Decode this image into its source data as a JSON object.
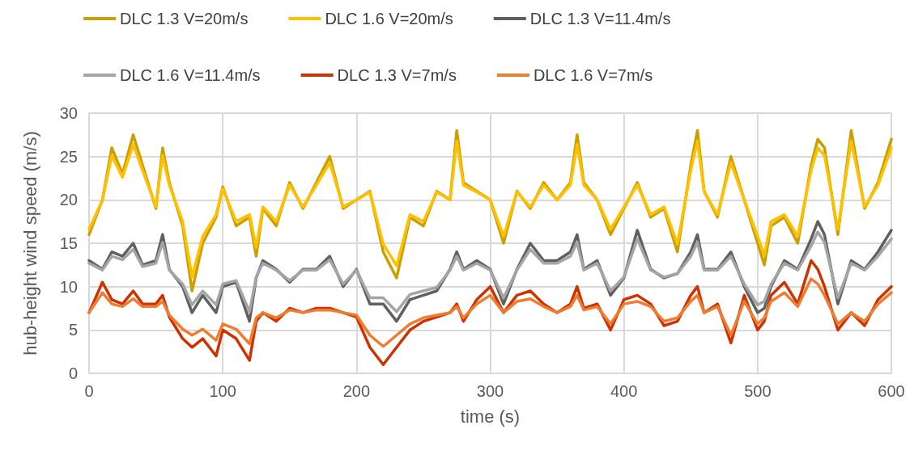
{
  "chart_data": {
    "type": "line",
    "xlabel": "time (s)",
    "ylabel": "hub-height wind speed (m/s)",
    "x": [
      0,
      10,
      17,
      25,
      33,
      40,
      50,
      55,
      60,
      70,
      77,
      85,
      95,
      100,
      110,
      120,
      125,
      130,
      140,
      150,
      160,
      170,
      180,
      190,
      200,
      210,
      220,
      230,
      240,
      250,
      260,
      270,
      275,
      280,
      290,
      300,
      310,
      320,
      330,
      340,
      350,
      360,
      365,
      370,
      380,
      390,
      400,
      410,
      420,
      430,
      440,
      450,
      455,
      460,
      470,
      480,
      490,
      500,
      505,
      510,
      520,
      530,
      540,
      545,
      550,
      560,
      570,
      580,
      590,
      600
    ],
    "series": [
      {
        "name": "DLC 1.3 V=20m/s",
        "color": "#c9a000",
        "values": [
          16,
          20,
          26,
          23,
          27.5,
          24,
          19,
          26,
          22,
          17,
          9.5,
          15,
          18,
          21.5,
          17,
          18,
          13.5,
          19,
          17,
          22,
          19,
          22,
          25,
          19,
          20,
          21,
          14,
          11,
          18,
          17,
          21,
          20,
          28,
          22,
          21,
          20,
          15,
          21,
          19,
          22,
          20,
          22,
          27.5,
          22,
          20,
          16,
          19,
          22,
          18,
          19,
          14,
          24,
          28,
          21,
          18,
          25,
          20,
          15,
          12.5,
          17,
          18,
          15,
          24,
          27,
          26,
          16,
          28,
          19,
          22,
          27
        ]
      },
      {
        "name": "DLC 1.6 V=20m/s",
        "color": "#ffc000",
        "values": [
          16.6,
          20,
          25.1,
          22.6,
          26.4,
          23.4,
          19.2,
          25.1,
          21.7,
          17.5,
          11.1,
          15.8,
          18.3,
          21.3,
          17.5,
          18.3,
          14.5,
          19.2,
          17.5,
          21.7,
          19.2,
          21.7,
          24.3,
          19.2,
          20,
          20.9,
          14.9,
          12.4,
          18.3,
          17.5,
          20.9,
          20,
          26.8,
          21.7,
          20.9,
          20,
          15.8,
          20.9,
          19.2,
          21.7,
          20,
          21.7,
          26.4,
          21.7,
          20,
          16.6,
          19.2,
          21.7,
          18.3,
          19.2,
          14.9,
          23.4,
          26.8,
          20.9,
          18.3,
          24.3,
          20,
          15.8,
          13.6,
          17.5,
          18.3,
          15.8,
          23.4,
          26,
          25.1,
          16.6,
          26.8,
          19.2,
          21.7,
          26
        ]
      },
      {
        "name": "DLC 1.3 V=11.4m/s",
        "color": "#606060",
        "values": [
          13,
          12,
          14,
          13.5,
          15,
          12.5,
          13,
          16,
          12,
          10,
          7,
          9,
          7,
          10,
          10.5,
          6,
          11,
          13,
          12,
          10.5,
          12,
          12,
          13.5,
          10,
          12,
          8,
          8,
          6,
          8.5,
          9,
          9.5,
          12,
          14,
          12,
          13,
          12,
          8,
          12,
          15,
          13,
          13,
          14,
          16,
          12,
          13,
          9,
          11,
          16.5,
          12,
          11,
          11.5,
          14,
          16,
          12,
          12,
          14,
          10,
          7,
          7.5,
          10,
          13,
          12,
          15.5,
          17.5,
          16,
          8,
          13,
          12,
          14,
          16.5
        ]
      },
      {
        "name": "DLC 1.6 V=11.4m/s",
        "color": "#a5a5a5",
        "values": [
          12.7,
          11.9,
          13.5,
          13.1,
          14.3,
          12.3,
          12.7,
          15.1,
          11.9,
          10.3,
          7.9,
          9.5,
          7.9,
          10.3,
          10.7,
          7.1,
          11.1,
          12.7,
          11.9,
          10.7,
          11.9,
          11.9,
          13.1,
          10.3,
          11.9,
          8.7,
          8.7,
          7.1,
          9.1,
          9.5,
          9.9,
          11.9,
          13.5,
          11.9,
          12.7,
          11.9,
          8.7,
          11.9,
          14.3,
          12.7,
          12.7,
          13.5,
          15.1,
          11.9,
          12.7,
          9.5,
          11.1,
          15.5,
          11.9,
          11.1,
          11.5,
          13.5,
          15.1,
          11.9,
          11.9,
          13.5,
          10.3,
          7.9,
          8.3,
          10.3,
          12.7,
          11.9,
          14.7,
          16.3,
          15.1,
          8.7,
          12.7,
          11.9,
          13.5,
          15.5
        ]
      },
      {
        "name": "DLC 1.3 V=7m/s",
        "color": "#cc3300",
        "values": [
          7,
          10.5,
          8.5,
          8,
          9.5,
          8,
          8,
          9,
          6.5,
          4,
          3,
          4,
          2,
          5,
          4,
          1.5,
          6,
          7,
          6,
          7.5,
          7,
          7.5,
          7.5,
          7,
          6.5,
          3,
          1,
          3,
          5,
          6,
          6.5,
          7,
          8,
          6,
          8.5,
          10,
          7,
          9,
          9.5,
          8,
          7,
          8,
          10,
          7.5,
          8,
          5,
          8.5,
          9,
          8,
          5.5,
          6,
          9,
          10,
          7,
          8,
          3.5,
          9,
          5,
          6,
          9,
          10.5,
          8,
          13,
          12,
          10,
          5,
          7,
          5.5,
          8.5,
          10
        ]
      },
      {
        "name": "DLC 1.6 V=7m/s",
        "color": "#ed7d31",
        "values": [
          7,
          9.3,
          8,
          7.7,
          8.6,
          7.7,
          7.7,
          8.3,
          6.7,
          5.1,
          4.4,
          5.1,
          3.8,
          5.7,
          5.1,
          3.4,
          6.4,
          7,
          6.4,
          7.3,
          7,
          7.3,
          7.3,
          7,
          6.7,
          4.4,
          3.1,
          4.4,
          5.7,
          6.4,
          6.7,
          7,
          7.7,
          6.4,
          8,
          9,
          7,
          8.3,
          8.6,
          7.7,
          7,
          7.7,
          9,
          7.3,
          7.7,
          5.7,
          8,
          8.3,
          7.7,
          6,
          6.4,
          8.3,
          9,
          7,
          7.7,
          4.4,
          8.3,
          5.7,
          6.4,
          8.3,
          9.3,
          7.7,
          10.9,
          10.3,
          9,
          5.7,
          7,
          6,
          8,
          9.3
        ]
      }
    ],
    "xlim": [
      0,
      600
    ],
    "xticks": [
      0,
      100,
      200,
      300,
      400,
      500,
      600
    ],
    "ylim": [
      0,
      30
    ],
    "yticks": [
      0,
      5,
      10,
      15,
      20,
      25,
      30
    ],
    "grid": true,
    "legend": "top",
    "marker": "none",
    "line_style": "solid"
  }
}
